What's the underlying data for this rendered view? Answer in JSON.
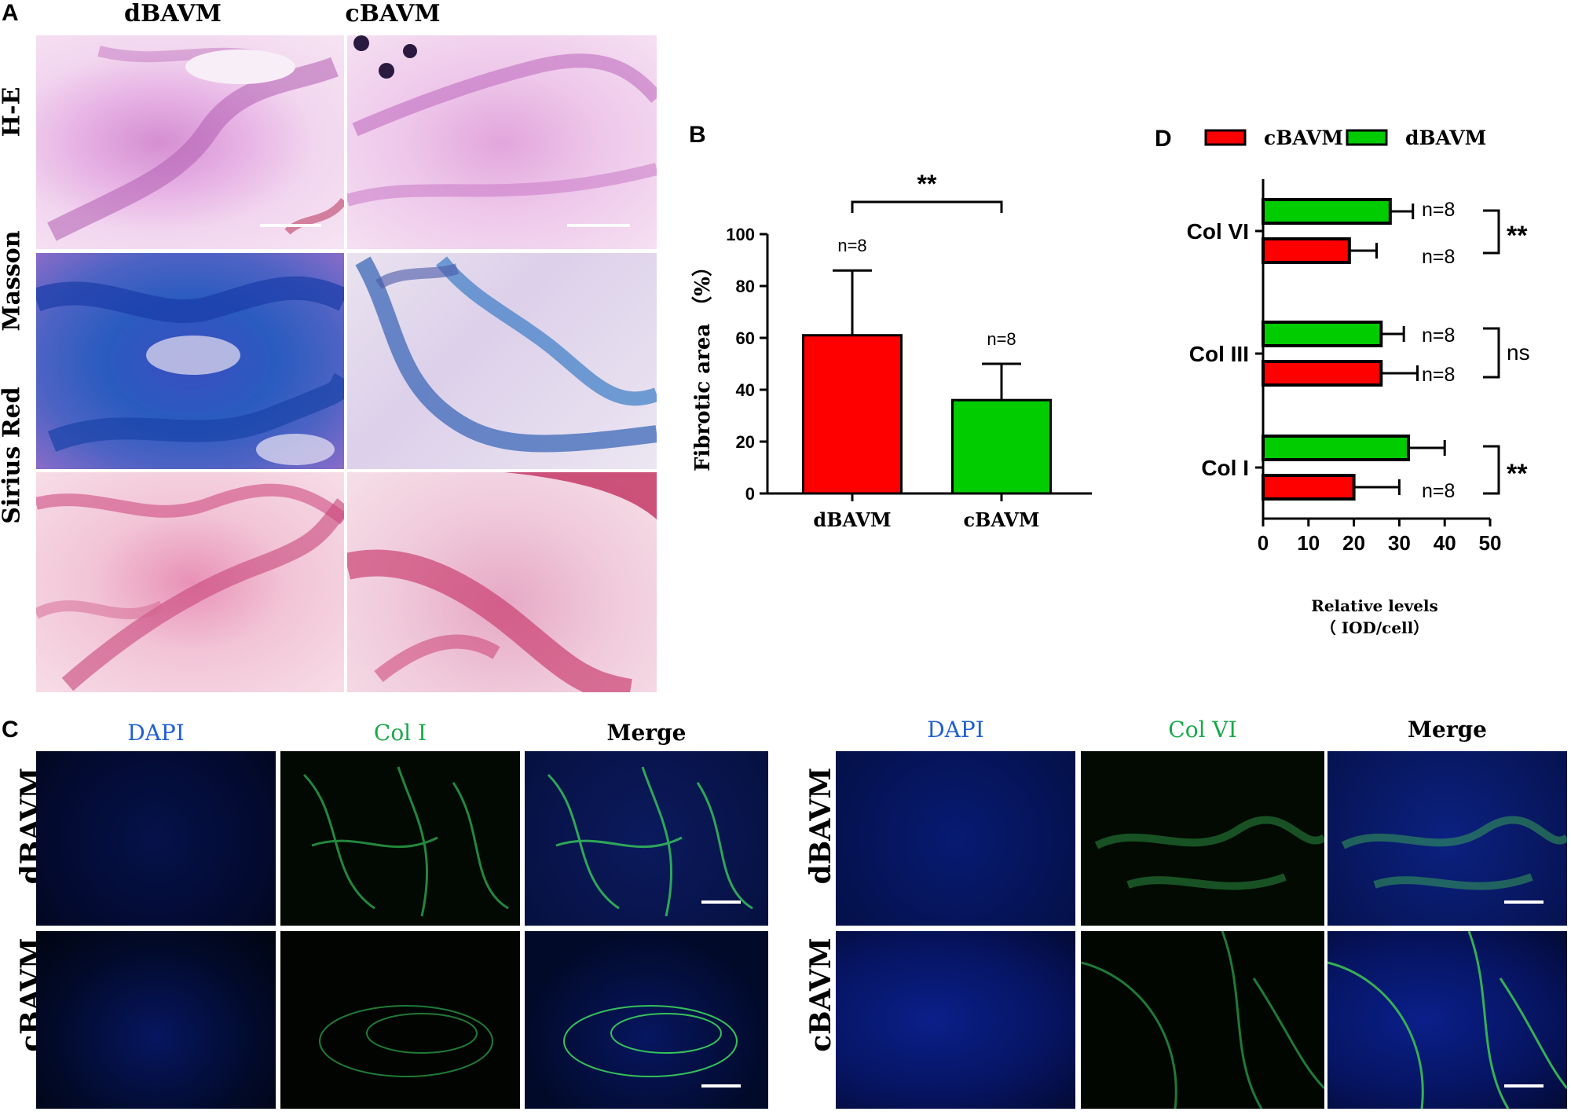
{
  "panel_a": {
    "label": "A",
    "columns": [
      "dBAVM",
      "cBAVM"
    ],
    "rows": [
      "H-E",
      "Masson",
      "Sirius Red"
    ]
  },
  "panel_b": {
    "label": "B",
    "significance": "**"
  },
  "panel_c": {
    "label": "C",
    "left_headers": [
      "DAPI",
      "Col I",
      "Merge"
    ],
    "right_headers": [
      "DAPI",
      "Col VI",
      "Merge"
    ],
    "rows": [
      "dBAVM",
      "cBAVM"
    ],
    "colors": {
      "dapi": "#1f5fd6",
      "col": "#1aa84a",
      "merge": "#000000"
    }
  },
  "panel_d": {
    "label": "D",
    "legend": [
      {
        "name": "cBAVM",
        "color": "#ff0000"
      },
      {
        "name": "dBAVM",
        "color": "#00cc00"
      }
    ],
    "xlabel_line1": "Relative levels",
    "xlabel_line2": "（ IOD/cell）"
  },
  "chart_data": [
    {
      "type": "bar",
      "panel": "B",
      "categories": [
        "dBAVM",
        "cBAVM"
      ],
      "values": [
        61,
        36
      ],
      "errors": [
        25,
        14
      ],
      "colors": [
        "#ff0000",
        "#00cc00"
      ],
      "annotations": [
        "n=8",
        "n=8"
      ],
      "significance": "**",
      "ylabel": "Fibrotic area （%）",
      "xlabel": "",
      "ylim": [
        0,
        100
      ],
      "yticks": [
        0,
        20,
        40,
        60,
        80,
        100
      ]
    },
    {
      "type": "bar",
      "panel": "D",
      "orientation": "horizontal",
      "categories": [
        "Col VI",
        "Col III",
        "Col I"
      ],
      "series": [
        {
          "name": "dBAVM",
          "values": [
            28,
            26,
            32
          ],
          "errors": [
            5,
            5,
            8
          ]
        },
        {
          "name": "cBAVM",
          "values": [
            19,
            26,
            20
          ],
          "errors": [
            6,
            8,
            10
          ]
        }
      ],
      "annotations": [
        "n=8",
        "n=8",
        "n=8",
        "n=8",
        "n=8"
      ],
      "significance": [
        "**",
        "ns",
        "**"
      ],
      "xlabel": "Relative levels （ IOD/cell）",
      "xlim": [
        0,
        50
      ],
      "xticks": [
        0,
        10,
        20,
        30,
        40,
        50
      ]
    }
  ]
}
